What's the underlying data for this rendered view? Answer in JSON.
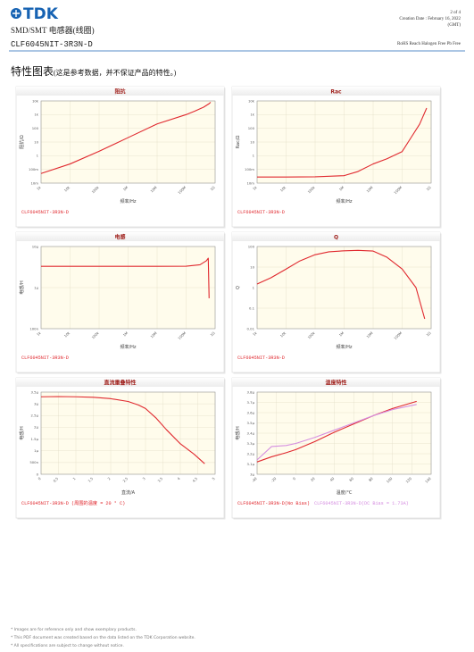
{
  "header": {
    "logo": "TDK",
    "category": "SMD/SMT 电感器(线圈)",
    "part_number": "CLF6045NIT-3R3N-D",
    "page": "2 of 4",
    "creation_date": "Creation Date : February 16, 2022",
    "timezone": "(GMT)",
    "compliance": "RoHS Reach Halogen Free Pb Free"
  },
  "section": {
    "title": "特性图表",
    "note": "(这是参考数据，并不保证产品的特性。)"
  },
  "chart_data": [
    {
      "type": "line",
      "title": "阻抗",
      "xlabel": "频率/Hz",
      "ylabel": "阻抗/Ω",
      "xscale": "log",
      "yscale": "log",
      "grid": true,
      "xlim": [
        1000,
        1000000000
      ],
      "ylim": [
        0.01,
        10000
      ],
      "xticks": [
        {
          "value": 1000,
          "label": "1k"
        },
        {
          "value": 10000,
          "label": "10k"
        },
        {
          "value": 100000,
          "label": "100k"
        },
        {
          "value": 1000000,
          "label": "1M"
        },
        {
          "value": 10000000,
          "label": "10M"
        },
        {
          "value": 100000000,
          "label": "100M"
        },
        {
          "value": 1000000000,
          "label": "1G"
        }
      ],
      "yticks": [
        {
          "value": 0.01,
          "label": "10m"
        },
        {
          "value": 0.1,
          "label": "100m"
        },
        1,
        10,
        100,
        {
          "value": 1000,
          "label": "1k"
        },
        {
          "value": 10000,
          "label": "10k"
        }
      ],
      "x": [
        1000,
        10000,
        100000,
        1000000,
        10000000,
        100000000,
        200000000,
        400000000,
        600000000,
        700000000
      ],
      "series": [
        {
          "name": "CLF6045NIT-3R3N-D",
          "color": "#e0282e",
          "values": [
            0.05,
            0.25,
            2.1,
            21,
            210,
            1000,
            1800,
            3500,
            6000,
            8000
          ]
        }
      ]
    },
    {
      "type": "line",
      "title": "Rac",
      "xlabel": "频率/Hz",
      "ylabel": "Rac/Ω",
      "xscale": "log",
      "yscale": "log",
      "grid": true,
      "xlim": [
        1000,
        1000000000
      ],
      "ylim": [
        0.01,
        10000
      ],
      "xticks": [
        {
          "value": 1000,
          "label": "1k"
        },
        {
          "value": 10000,
          "label": "10k"
        },
        {
          "value": 100000,
          "label": "100k"
        },
        {
          "value": 1000000,
          "label": "1M"
        },
        {
          "value": 10000000,
          "label": "10M"
        },
        {
          "value": 100000000,
          "label": "100M"
        },
        {
          "value": 1000000000,
          "label": "1G"
        }
      ],
      "yticks": [
        {
          "value": 0.01,
          "label": "10m"
        },
        {
          "value": 0.1,
          "label": "100m"
        },
        1,
        10,
        100,
        {
          "value": 1000,
          "label": "1k"
        },
        {
          "value": 10000,
          "label": "10k"
        }
      ],
      "x": [
        1000,
        10000,
        100000,
        1000000,
        3000000,
        10000000,
        30000000,
        100000000,
        200000000,
        400000000,
        700000000
      ],
      "series": [
        {
          "name": "CLF6045NIT-3R3N-D",
          "color": "#e0282e",
          "values": [
            0.028,
            0.028,
            0.029,
            0.035,
            0.07,
            0.25,
            0.6,
            2,
            20,
            200,
            3000
          ]
        }
      ]
    },
    {
      "type": "line",
      "title": "电感",
      "xlabel": "频率/Hz",
      "ylabel": "电感/H",
      "xscale": "log",
      "yscale": "log",
      "grid": true,
      "xlim": [
        1000,
        1000000000
      ],
      "ylim": [
        1e-07,
        1e-05
      ],
      "xticks": [
        {
          "value": 1000,
          "label": "1k"
        },
        {
          "value": 10000,
          "label": "10k"
        },
        {
          "value": 100000,
          "label": "100k"
        },
        {
          "value": 1000000,
          "label": "1M"
        },
        {
          "value": 10000000,
          "label": "10M"
        },
        {
          "value": 100000000,
          "label": "100M"
        },
        {
          "value": 1000000000,
          "label": "1G"
        }
      ],
      "yticks": [
        {
          "value": 1e-07,
          "label": "100n"
        },
        {
          "value": 1e-06,
          "label": "1µ"
        },
        {
          "value": 1e-05,
          "label": "10µ"
        }
      ],
      "x": [
        1000,
        10000,
        100000,
        1000000,
        10000000,
        100000000,
        300000000,
        500000000,
        580000000,
        620000000
      ],
      "series": [
        {
          "name": "CLF6045NIT-3R3N-D",
          "color": "#e0282e",
          "values": [
            3.3e-06,
            3.3e-06,
            3.3e-06,
            3.3e-06,
            3.3e-06,
            3.32e-06,
            3.6e-06,
            4.5e-06,
            5.2e-06,
            5.5e-07
          ]
        }
      ]
    },
    {
      "type": "line",
      "title": "Q",
      "xlabel": "频率/Hz",
      "ylabel": "Q",
      "xscale": "log",
      "yscale": "log",
      "grid": true,
      "xlim": [
        1000,
        1000000000
      ],
      "ylim": [
        0.01,
        100
      ],
      "xticks": [
        {
          "value": 1000,
          "label": "1k"
        },
        {
          "value": 10000,
          "label": "10k"
        },
        {
          "value": 100000,
          "label": "100k"
        },
        {
          "value": 1000000,
          "label": "1M"
        },
        {
          "value": 10000000,
          "label": "10M"
        },
        {
          "value": 100000000,
          "label": "100M"
        },
        {
          "value": 1000000000,
          "label": "1G"
        }
      ],
      "yticks": [
        0.01,
        0.1,
        1,
        10,
        100
      ],
      "x": [
        1000,
        3000,
        10000,
        30000,
        100000,
        300000,
        1000000,
        3000000,
        10000000,
        30000000,
        100000000,
        300000000,
        600000000
      ],
      "series": [
        {
          "name": "CLF6045NIT-3R3N-D",
          "color": "#e0282e",
          "values": [
            1.5,
            3,
            8,
            20,
            40,
            55,
            62,
            65,
            60,
            30,
            8,
            1,
            0.03
          ]
        }
      ]
    },
    {
      "type": "line",
      "title": "直流重叠特性",
      "xlabel": "直流/A",
      "ylabel": "电感/H",
      "xscale": "linear",
      "yscale": "linear",
      "grid": true,
      "xlim": [
        0,
        5
      ],
      "ylim": [
        0,
        3.5e-06
      ],
      "xticks": [
        0,
        0.5,
        1,
        1.5,
        2,
        2.5,
        3,
        3.5,
        4,
        4.5,
        5
      ],
      "yticks": [
        0,
        {
          "value": 5e-07,
          "label": "500n"
        },
        {
          "value": 1e-06,
          "label": "1µ"
        },
        {
          "value": 1.5e-06,
          "label": "1.5µ"
        },
        {
          "value": 2e-06,
          "label": "2µ"
        },
        {
          "value": 2.5e-06,
          "label": "2.5µ"
        },
        {
          "value": 3e-06,
          "label": "3µ"
        },
        {
          "value": 3.5e-06,
          "label": "3.5µ"
        }
      ],
      "x": [
        0,
        0.5,
        1,
        1.5,
        2,
        2.5,
        2.8,
        3,
        3.3,
        3.6,
        4,
        4.4,
        4.7
      ],
      "series": [
        {
          "name": "CLF6045NIT-3R3N-D (周围的温度 = 20 ° C)",
          "color": "#e0282e",
          "values": [
            3.3e-06,
            3.31e-06,
            3.3e-06,
            3.28e-06,
            3.22e-06,
            3.1e-06,
            2.95e-06,
            2.8e-06,
            2.4e-06,
            1.9e-06,
            1.3e-06,
            8.5e-07,
            4.5e-07
          ]
        }
      ]
    },
    {
      "type": "line",
      "title": "温度特性",
      "xlabel": "温度/°C",
      "ylabel": "电感/H",
      "xscale": "linear",
      "yscale": "linear",
      "grid": true,
      "xlim": [
        -40,
        140
      ],
      "ylim": [
        3e-06,
        3.8e-06
      ],
      "xticks": [
        -40,
        -20,
        0,
        20,
        40,
        60,
        80,
        100,
        120,
        140
      ],
      "yticks": [
        {
          "value": 3e-06,
          "label": "3µ"
        },
        {
          "value": 3.1e-06,
          "label": "3.1µ"
        },
        {
          "value": 3.2e-06,
          "label": "3.2µ"
        },
        {
          "value": 3.3e-06,
          "label": "3.3µ"
        },
        {
          "value": 3.4e-06,
          "label": "3.4µ"
        },
        {
          "value": 3.5e-06,
          "label": "3.5µ"
        },
        {
          "value": 3.6e-06,
          "label": "3.6µ"
        },
        {
          "value": 3.7e-06,
          "label": "3.7µ"
        },
        {
          "value": 3.8e-06,
          "label": "3.8µ"
        }
      ],
      "x": [
        -40,
        -25,
        -10,
        0,
        20,
        40,
        60,
        80,
        100,
        125
      ],
      "series": [
        {
          "name": "CLF6045NIT-3R3N-D(No Bias)",
          "color": "#e0282e",
          "values": [
            3.12e-06,
            3.17e-06,
            3.21e-06,
            3.24e-06,
            3.32e-06,
            3.41e-06,
            3.49e-06,
            3.57e-06,
            3.64e-06,
            3.71e-06
          ]
        },
        {
          "name": "CLF6045NIT-3R3N-D(DC Bias = 1.73A)",
          "color": "#d58ee0",
          "values": [
            3.14e-06,
            3.27e-06,
            3.28e-06,
            3.3e-06,
            3.36e-06,
            3.43e-06,
            3.5e-06,
            3.57e-06,
            3.63e-06,
            3.68e-06
          ]
        }
      ]
    }
  ],
  "footer": {
    "notes": [
      "* Images are for reference only and show exemplary products.",
      "* This PDF document was created based on the data listed on the TDK Corporation website.",
      "* All specifications are subject to change without notice."
    ]
  }
}
